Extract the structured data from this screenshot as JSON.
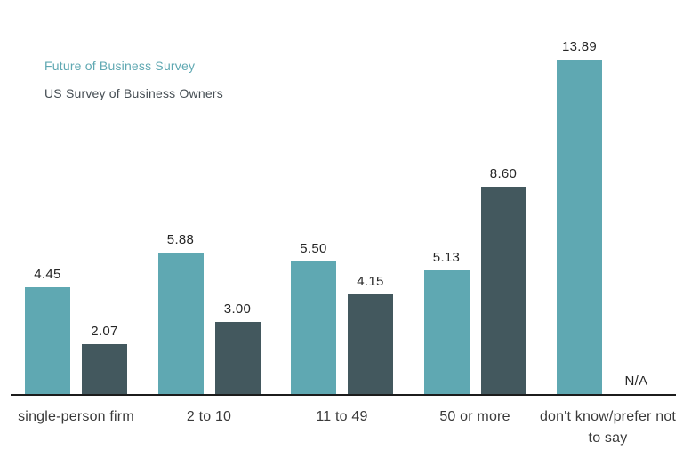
{
  "legend": {
    "series1": "Future of Business Survey",
    "series2": "US Survey of Business Owners"
  },
  "colors": {
    "series1_bar": "#5FA8B2",
    "series2_bar": "#43585E",
    "legend1_text": "#5FA8B2",
    "legend2_text": "#454D53",
    "axis_line": "#1C1C1C",
    "value_label": "#262626",
    "category_label": "#3A3A3A"
  },
  "chart_data": {
    "type": "bar",
    "title": "",
    "categories": [
      "single-person firm",
      "2 to 10",
      "11 to 49",
      "50 or more",
      "don't know/prefer not to say"
    ],
    "series": [
      {
        "name": "Future of Business Survey",
        "values": [
          4.45,
          5.88,
          5.5,
          5.13,
          13.89
        ]
      },
      {
        "name": "US Survey of Business Owners",
        "values": [
          2.07,
          3.0,
          4.15,
          8.6,
          null
        ]
      }
    ],
    "value_labels": [
      [
        "4.45",
        "2.07"
      ],
      [
        "5.88",
        "3.00"
      ],
      [
        "5.50",
        "4.15"
      ],
      [
        "5.13",
        "8.60"
      ],
      [
        "13.89",
        "N/A"
      ]
    ],
    "missing_label": "N/A",
    "xlabel": "",
    "ylabel": "",
    "ylim": [
      0,
      14
    ],
    "grid": false,
    "data_labels": true,
    "legend_position": "top-left"
  }
}
